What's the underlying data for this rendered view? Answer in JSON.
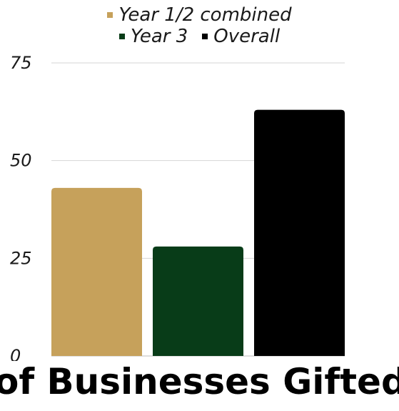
{
  "chart_data": {
    "type": "bar",
    "title": "",
    "xlabel": "of Businesses Gifted",
    "ylabel": "",
    "ylim": [
      0,
      75
    ],
    "yticks": [
      0,
      25,
      50,
      75
    ],
    "grid": true,
    "legend_position": "top-center",
    "series": [
      {
        "name": "Year 1/2 combined",
        "value": 43,
        "color": "#c6a15b"
      },
      {
        "name": "Year 3",
        "value": 28,
        "color": "#083c18"
      },
      {
        "name": "Overall",
        "value": 63,
        "color": "#000000"
      }
    ]
  }
}
